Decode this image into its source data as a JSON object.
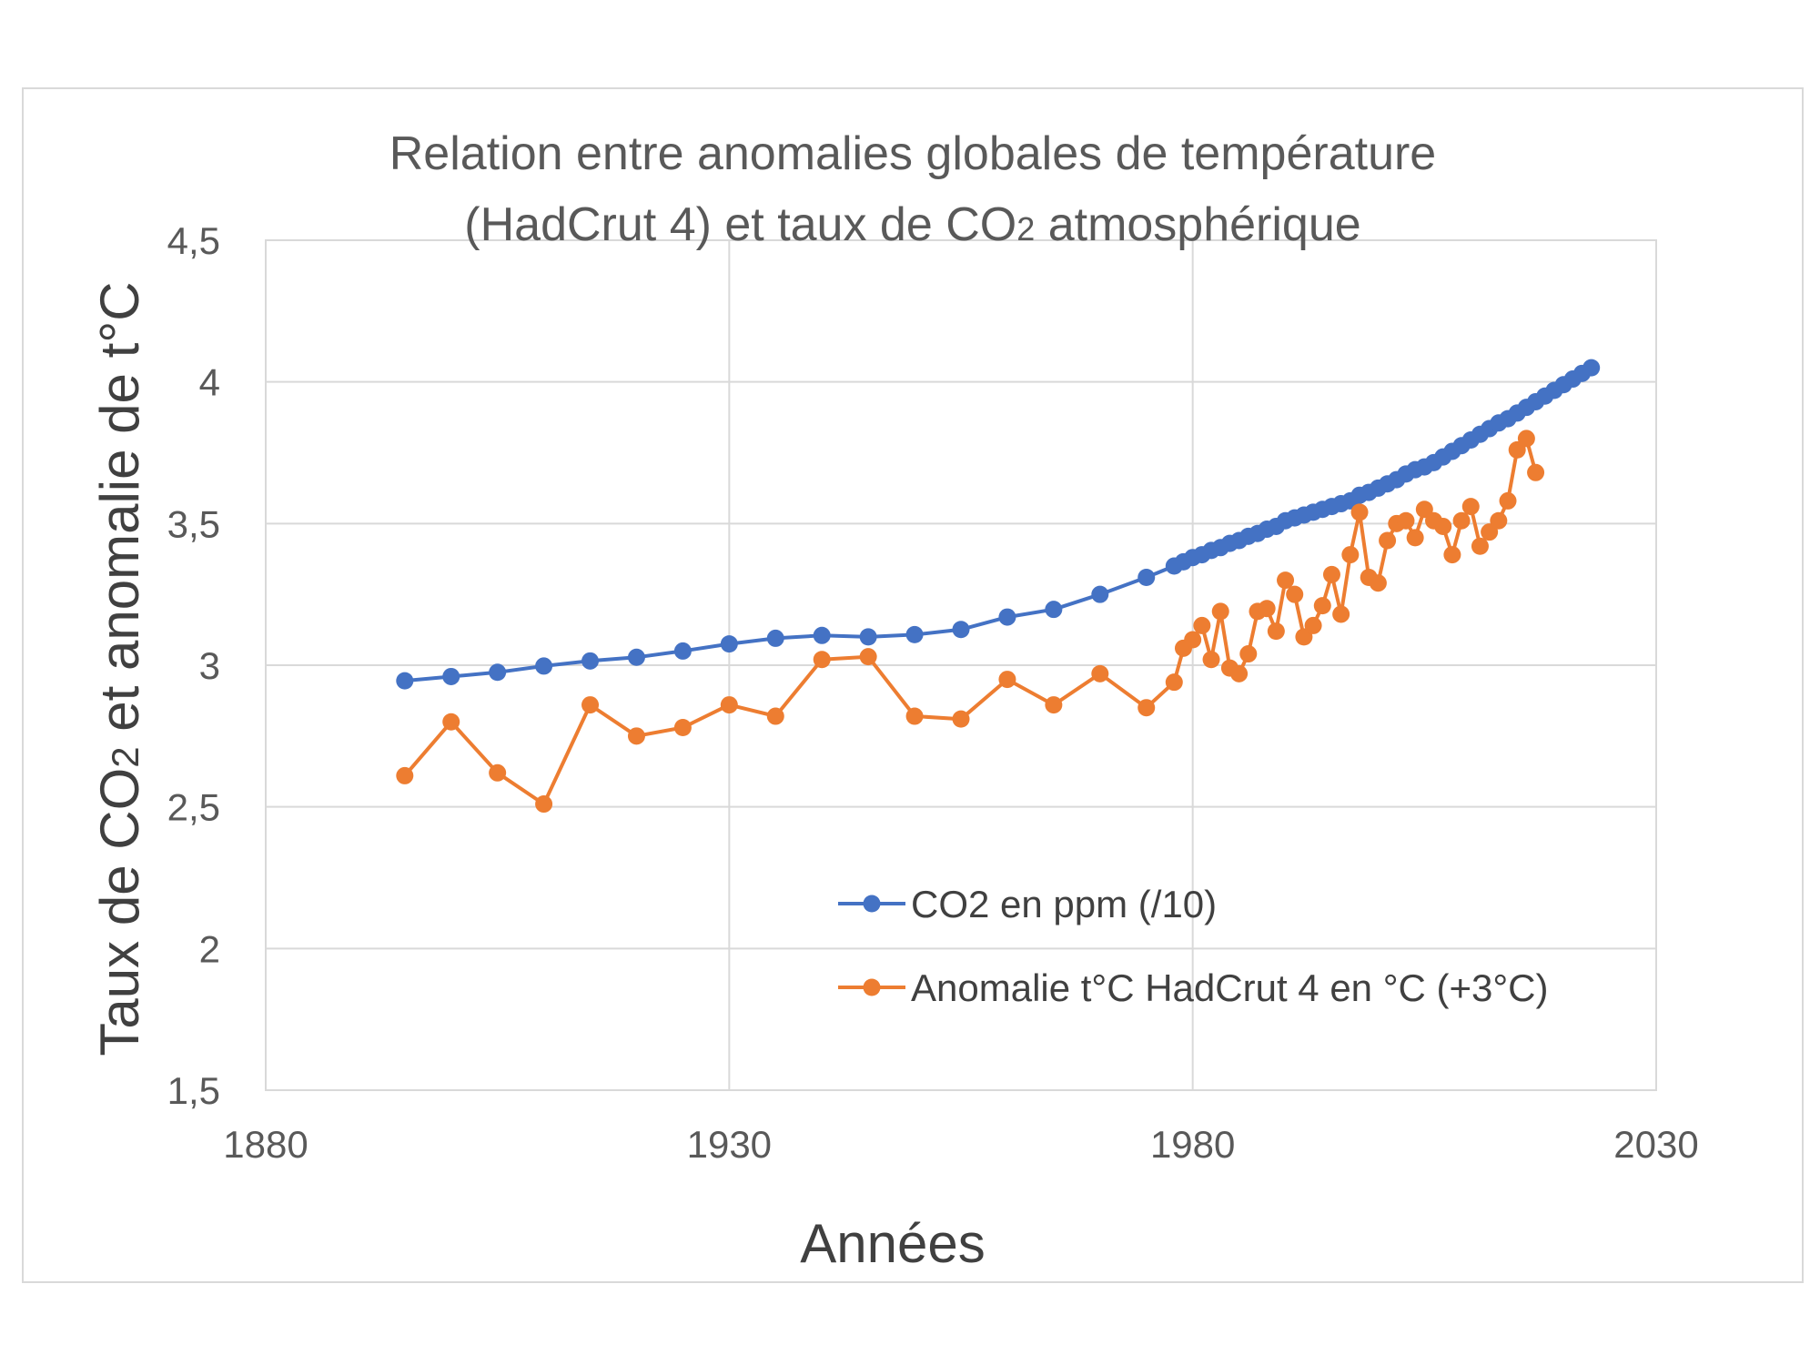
{
  "chart_data": {
    "type": "line",
    "title_line1": "Relation entre anomalies globales de température",
    "title_line2_pre": "(HadCrut 4) et taux de CO",
    "title_line2_sub": "2",
    "title_line2_post": " atmosphérique",
    "ylabel_pre": "Taux de CO",
    "ylabel_sub": "2",
    "ylabel_post": " et anomalie de t°C",
    "xlabel": "Années",
    "xlim": [
      1880,
      2030
    ],
    "ylim": [
      1.5,
      4.5
    ],
    "x_ticks": [
      1880,
      1930,
      1980,
      2030
    ],
    "y_ticks": [
      1.5,
      2,
      2.5,
      3,
      3.5,
      4,
      4.5
    ],
    "x_tick_labels": [
      "1880",
      "1930",
      "1980",
      "2030"
    ],
    "y_tick_labels": [
      "1,5",
      "2",
      "2,5",
      "3",
      "3,5",
      "4",
      "4,5"
    ],
    "grid": true,
    "legend_position": "bottom-center",
    "series": [
      {
        "name": "CO2 en ppm (/10)",
        "color": "#4472C4",
        "points": [
          [
            1895,
            2.945
          ],
          [
            1900,
            2.96
          ],
          [
            1905,
            2.975
          ],
          [
            1910,
            2.997
          ],
          [
            1915,
            3.015
          ],
          [
            1920,
            3.028
          ],
          [
            1925,
            3.05
          ],
          [
            1930,
            3.075
          ],
          [
            1935,
            3.095
          ],
          [
            1940,
            3.105
          ],
          [
            1945,
            3.1
          ],
          [
            1950,
            3.108
          ],
          [
            1955,
            3.126
          ],
          [
            1960,
            3.17
          ],
          [
            1965,
            3.197
          ],
          [
            1970,
            3.25
          ],
          [
            1975,
            3.31
          ],
          [
            1978,
            3.35
          ],
          [
            1979,
            3.365
          ],
          [
            1980,
            3.38
          ],
          [
            1981,
            3.39
          ],
          [
            1982,
            3.405
          ],
          [
            1983,
            3.415
          ],
          [
            1984,
            3.43
          ],
          [
            1985,
            3.44
          ],
          [
            1986,
            3.455
          ],
          [
            1987,
            3.465
          ],
          [
            1988,
            3.48
          ],
          [
            1989,
            3.49
          ],
          [
            1990,
            3.51
          ],
          [
            1991,
            3.52
          ],
          [
            1992,
            3.53
          ],
          [
            1993,
            3.54
          ],
          [
            1994,
            3.55
          ],
          [
            1995,
            3.56
          ],
          [
            1996,
            3.57
          ],
          [
            1997,
            3.58
          ],
          [
            1998,
            3.6
          ],
          [
            1999,
            3.61
          ],
          [
            2000,
            3.625
          ],
          [
            2001,
            3.64
          ],
          [
            2002,
            3.655
          ],
          [
            2003,
            3.675
          ],
          [
            2004,
            3.69
          ],
          [
            2005,
            3.7
          ],
          [
            2006,
            3.715
          ],
          [
            2007,
            3.735
          ],
          [
            2008,
            3.755
          ],
          [
            2009,
            3.775
          ],
          [
            2010,
            3.795
          ],
          [
            2011,
            3.815
          ],
          [
            2012,
            3.835
          ],
          [
            2013,
            3.855
          ],
          [
            2014,
            3.87
          ],
          [
            2015,
            3.89
          ],
          [
            2016,
            3.91
          ],
          [
            2017,
            3.93
          ],
          [
            2018,
            3.95
          ],
          [
            2019,
            3.97
          ],
          [
            2020,
            3.99
          ],
          [
            2021,
            4.01
          ],
          [
            2022,
            4.03
          ],
          [
            2023,
            4.05
          ]
        ]
      },
      {
        "name": "Anomalie t°C HadCrut 4 en °C (+3°C)",
        "color": "#ED7D31",
        "points": [
          [
            1895,
            2.61
          ],
          [
            1900,
            2.8
          ],
          [
            1905,
            2.62
          ],
          [
            1910,
            2.51
          ],
          [
            1915,
            2.86
          ],
          [
            1920,
            2.75
          ],
          [
            1925,
            2.78
          ],
          [
            1930,
            2.86
          ],
          [
            1935,
            2.82
          ],
          [
            1940,
            3.02
          ],
          [
            1945,
            3.03
          ],
          [
            1950,
            2.82
          ],
          [
            1955,
            2.81
          ],
          [
            1960,
            2.95
          ],
          [
            1965,
            2.86
          ],
          [
            1970,
            2.97
          ],
          [
            1975,
            2.85
          ],
          [
            1978,
            2.94
          ],
          [
            1979,
            3.06
          ],
          [
            1980,
            3.09
          ],
          [
            1981,
            3.14
          ],
          [
            1982,
            3.02
          ],
          [
            1983,
            3.19
          ],
          [
            1984,
            2.99
          ],
          [
            1985,
            2.97
          ],
          [
            1986,
            3.04
          ],
          [
            1987,
            3.19
          ],
          [
            1988,
            3.2
          ],
          [
            1989,
            3.12
          ],
          [
            1990,
            3.3
          ],
          [
            1991,
            3.25
          ],
          [
            1992,
            3.1
          ],
          [
            1993,
            3.14
          ],
          [
            1994,
            3.21
          ],
          [
            1995,
            3.32
          ],
          [
            1996,
            3.18
          ],
          [
            1997,
            3.39
          ],
          [
            1998,
            3.54
          ],
          [
            1999,
            3.31
          ],
          [
            2000,
            3.29
          ],
          [
            2001,
            3.44
          ],
          [
            2002,
            3.5
          ],
          [
            2003,
            3.51
          ],
          [
            2004,
            3.45
          ],
          [
            2005,
            3.55
          ],
          [
            2006,
            3.51
          ],
          [
            2007,
            3.49
          ],
          [
            2008,
            3.39
          ],
          [
            2009,
            3.51
          ],
          [
            2010,
            3.56
          ],
          [
            2011,
            3.42
          ],
          [
            2012,
            3.47
          ],
          [
            2013,
            3.51
          ],
          [
            2014,
            3.58
          ],
          [
            2015,
            3.76
          ],
          [
            2016,
            3.8
          ],
          [
            2017,
            3.68
          ]
        ]
      }
    ]
  }
}
